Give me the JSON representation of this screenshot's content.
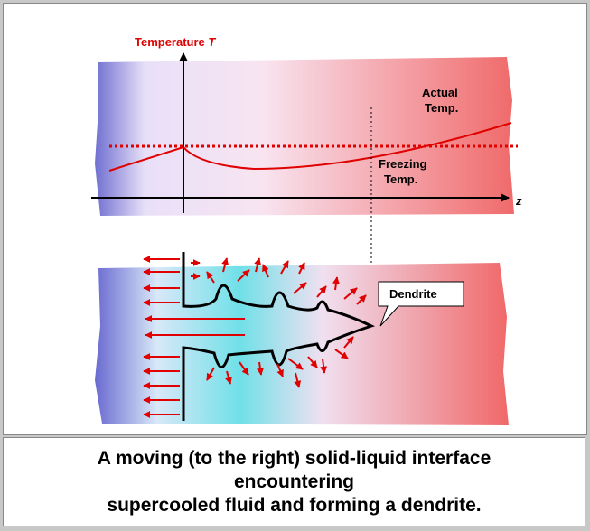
{
  "diagram": {
    "axis_label": "Temperature ",
    "axis_var": "T",
    "z_label": "z",
    "actual_label": [
      "Actual",
      "Temp."
    ],
    "freezing_label": [
      "Freezing",
      "Temp."
    ],
    "callout": "Dendrite"
  },
  "caption": {
    "lines": [
      "A moving (to the right) solid-liquid interface",
      "encountering",
      "supercooled fluid and forming a dendrite."
    ]
  }
}
